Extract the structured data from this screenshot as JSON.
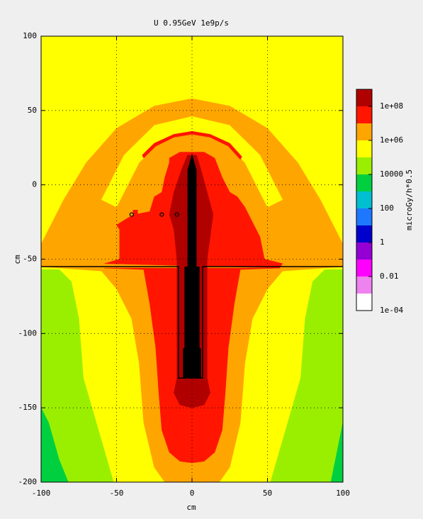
{
  "chart_data": {
    "type": "contour",
    "title": "U 0.95GeV 1e9p/s",
    "xlabel": "cm",
    "ylabel": "cm",
    "zlabel": "microGy/h*0.5",
    "xlim": [
      -100,
      100
    ],
    "ylim": [
      -200,
      100
    ],
    "xticks": [
      -100,
      -50,
      0,
      50,
      100
    ],
    "yticks": [
      -200,
      -150,
      -100,
      -50,
      0,
      50,
      100
    ],
    "grid": true,
    "log_z": true,
    "zlim": [
      0.0001,
      1000000000
    ],
    "zticks": [
      {
        "value": 0.0001,
        "label": "1e-04"
      },
      0.01,
      1,
      100,
      10000,
      {
        "value": 1000000,
        "label": "1e+06"
      },
      {
        "value": 100000000,
        "label": "1e+08"
      }
    ],
    "colors": [
      "#ffffff",
      "#ee82ee",
      "#ff00ff",
      "#9400d3",
      "#0000cd",
      "#1e78ff",
      "#00bfd0",
      "#00d040",
      "#9aef00",
      "#ffff00",
      "#ffa500",
      "#ff1500",
      "#b00000"
    ],
    "regions": [
      {
        "value": 100000,
        "x": [
          -100,
          100,
          100,
          -100
        ],
        "y": [
          100,
          100,
          -200,
          -200
        ]
      },
      {
        "value": 10000,
        "x": [
          -100,
          -88,
          -80,
          -75,
          -72,
          -62,
          -52,
          -100
        ],
        "y": [
          -57,
          -57,
          -65,
          -90,
          -130,
          -165,
          -200,
          -200
        ]
      },
      {
        "value": 10000,
        "x": [
          100,
          88,
          80,
          75,
          72,
          62,
          52,
          100
        ],
        "y": [
          -57,
          -57,
          -65,
          -90,
          -130,
          -165,
          -200,
          -200
        ]
      },
      {
        "value": 1000,
        "x": [
          -100,
          -95,
          -88,
          -82,
          -100
        ],
        "y": [
          -150,
          -160,
          -185,
          -200,
          -200
        ]
      },
      {
        "value": 1000,
        "x": [
          100,
          97,
          92,
          100
        ],
        "y": [
          -160,
          -175,
          -200,
          -200
        ]
      },
      {
        "value": 1000000,
        "x": [
          -100,
          -100,
          -85,
          -70,
          -50,
          -25,
          0,
          25,
          50,
          70,
          85,
          100,
          100
        ],
        "y": [
          -55,
          -40,
          -10,
          15,
          38,
          53,
          58,
          53,
          38,
          15,
          -10,
          -40,
          -55
        ]
      },
      {
        "value": 100000,
        "x": [
          -60,
          -45,
          -25,
          0,
          25,
          45,
          60,
          50,
          35,
          20,
          0,
          -20,
          -35,
          -50
        ],
        "y": [
          -10,
          20,
          40,
          46,
          40,
          20,
          -10,
          -15,
          15,
          30,
          35,
          30,
          15,
          -15
        ]
      },
      {
        "value": 1000000,
        "x": [
          -100,
          -60,
          -50,
          -40,
          -35,
          -32,
          -25,
          -18,
          18,
          25,
          32,
          35,
          40,
          50,
          60,
          100
        ],
        "y": [
          -55,
          -58,
          -70,
          -90,
          -120,
          -160,
          -190,
          -200,
          -200,
          -190,
          -160,
          -120,
          -90,
          -70,
          -58,
          -55
        ]
      },
      {
        "value": 10000000,
        "x": [
          -58,
          -48,
          -48,
          -50,
          -42,
          -38,
          -28,
          -25,
          -20,
          -18,
          -15,
          -15,
          -8,
          0,
          8,
          15,
          20,
          25,
          30,
          35,
          40,
          45,
          48,
          60,
          58
        ],
        "y": [
          -53,
          -50,
          -30,
          -27,
          -22,
          -20,
          -18,
          -8,
          -5,
          5,
          15,
          18,
          22,
          22,
          22,
          18,
          5,
          -5,
          -8,
          -15,
          -25,
          -35,
          -50,
          -53,
          -56
        ]
      },
      {
        "value": 10000000,
        "x": [
          -58,
          -32,
          -28,
          -24,
          -22,
          -20,
          -15,
          -8,
          0,
          8,
          15,
          20,
          22,
          24,
          28,
          32,
          58
        ],
        "y": [
          -56,
          -57,
          -80,
          -110,
          -140,
          -165,
          -180,
          -186,
          -187,
          -186,
          -180,
          -165,
          -140,
          -110,
          -80,
          -57,
          -56
        ]
      },
      {
        "value": 10000000,
        "x": [
          -33,
          -25,
          -12,
          0,
          12,
          25,
          33,
          32,
          24,
          12,
          0,
          -12,
          -24,
          -32
        ],
        "y": [
          20,
          28,
          34,
          36,
          34,
          28,
          19,
          17,
          26,
          32,
          34,
          32,
          26,
          18
        ]
      },
      {
        "value": 10000000,
        "x": [
          -39,
          -36,
          -36,
          -39
        ],
        "y": [
          -17,
          -17,
          -20,
          -20
        ]
      },
      {
        "value": 100000000,
        "x": [
          -3,
          -7,
          -12,
          -15,
          -12,
          -10,
          -10,
          -12,
          -8,
          0,
          8,
          12,
          10,
          10,
          12,
          14,
          10,
          6,
          3
        ],
        "y": [
          20,
          10,
          -5,
          -20,
          -30,
          -50,
          -130,
          -140,
          -148,
          -150,
          -148,
          -140,
          -130,
          -50,
          -35,
          -20,
          -5,
          10,
          20
        ]
      }
    ],
    "target": {
      "color": "#000000",
      "x": [
        0,
        -3,
        -3,
        -5,
        -5,
        -6,
        -6,
        6,
        6,
        5,
        5,
        3,
        3
      ],
      "y": [
        21,
        10,
        -55,
        -55,
        -110,
        -110,
        -130,
        -130,
        -110,
        -110,
        -55,
        -55,
        10
      ]
    },
    "outline": {
      "color": "#000000",
      "x": [
        -100,
        -9,
        -9,
        7,
        7,
        100
      ],
      "y": [
        -55,
        -55,
        -130,
        -130,
        -55,
        -55
      ]
    },
    "markers": {
      "color": "#000000",
      "x": [
        -40,
        -20,
        -10
      ],
      "y": [
        -20,
        -20,
        -20
      ]
    }
  }
}
